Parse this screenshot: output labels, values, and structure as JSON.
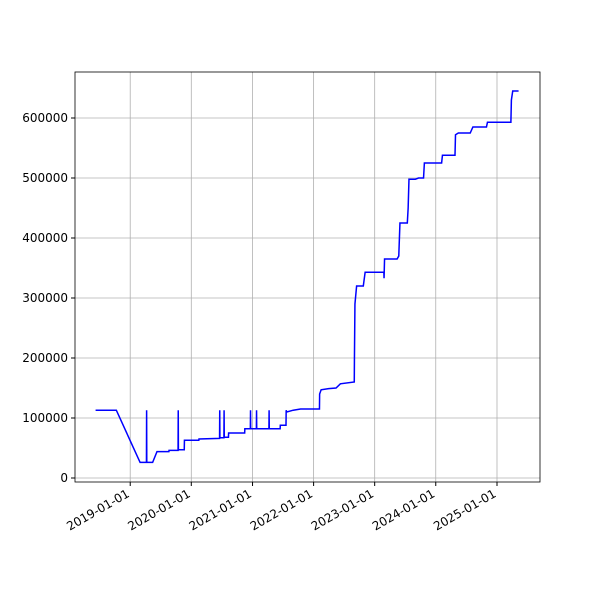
{
  "chart_data": {
    "type": "line",
    "x": [
      "2018-06-08",
      "2018-10-10",
      "2019-03-01",
      "2019-04-08",
      "2019-04-09",
      "2019-04-10",
      "2019-05-15",
      "2019-06-10",
      "2019-08-20",
      "2019-08-21",
      "2019-10-14",
      "2019-10-15",
      "2019-10-16",
      "2019-11-20",
      "2019-11-21",
      "2020-02-15",
      "2020-02-16",
      "2020-06-18",
      "2020-06-19",
      "2020-06-20",
      "2020-07-14",
      "2020-07-15",
      "2020-07-16",
      "2020-08-10",
      "2020-08-11",
      "2020-11-15",
      "2020-11-16",
      "2020-12-19",
      "2020-12-20",
      "2020-12-21",
      "2021-01-24",
      "2021-01-25",
      "2021-01-26",
      "2021-04-09",
      "2021-04-10",
      "2021-04-11",
      "2021-06-15",
      "2021-06-16",
      "2021-07-20",
      "2021-07-21",
      "2021-07-25",
      "2021-09-01",
      "2021-10-15",
      "2022-02-05",
      "2022-02-06",
      "2022-02-15",
      "2022-04-01",
      "2022-05-15",
      "2022-06-10",
      "2022-09-01",
      "2022-09-02",
      "2022-09-05",
      "2022-09-15",
      "2022-10-25",
      "2022-11-05",
      "2023-02-25",
      "2023-02-26",
      "2023-03-01",
      "2023-05-15",
      "2023-05-25",
      "2023-06-01",
      "2023-07-15",
      "2023-07-20",
      "2023-07-25",
      "2023-09-01",
      "2023-09-20",
      "2023-10-20",
      "2023-10-25",
      "2024-02-05",
      "2024-02-10",
      "2024-04-25",
      "2024-04-28",
      "2024-05-15",
      "2024-07-25",
      "2024-08-10",
      "2024-10-30",
      "2024-11-05",
      "2025-03-25",
      "2025-03-28",
      "2025-04-05",
      "2025-05-10"
    ],
    "series": [
      {
        "color": "#0000ff",
        "values": [
          113000,
          113000,
          26000,
          26000,
          113000,
          26000,
          26000,
          44000,
          44000,
          46000,
          46000,
          113000,
          47000,
          47000,
          63000,
          63000,
          65000,
          66000,
          113000,
          67000,
          67000,
          113000,
          68000,
          68000,
          75000,
          75000,
          82000,
          82000,
          113000,
          82000,
          82000,
          113000,
          82000,
          82000,
          113000,
          82000,
          82000,
          88000,
          88000,
          113000,
          110000,
          113000,
          115000,
          115000,
          140000,
          147000,
          149000,
          150000,
          157000,
          160000,
          200000,
          290000,
          320000,
          320000,
          343000,
          343000,
          333000,
          365000,
          365000,
          370000,
          425000,
          425000,
          450000,
          498000,
          498000,
          500000,
          500000,
          525000,
          525000,
          538000,
          538000,
          572000,
          575000,
          575000,
          585000,
          585000,
          593000,
          593000,
          630000,
          645000,
          645000
        ]
      }
    ],
    "xlim": [
      "2018-02-05",
      "2025-09-15"
    ],
    "xticks": [
      "2019-01-01",
      "2020-01-01",
      "2021-01-01",
      "2022-01-01",
      "2023-01-01",
      "2024-01-01",
      "2025-01-01"
    ],
    "ylim": [
      -6667,
      676667
    ],
    "yticks": [
      0,
      100000,
      200000,
      300000,
      400000,
      500000,
      600000
    ],
    "grid": true
  }
}
